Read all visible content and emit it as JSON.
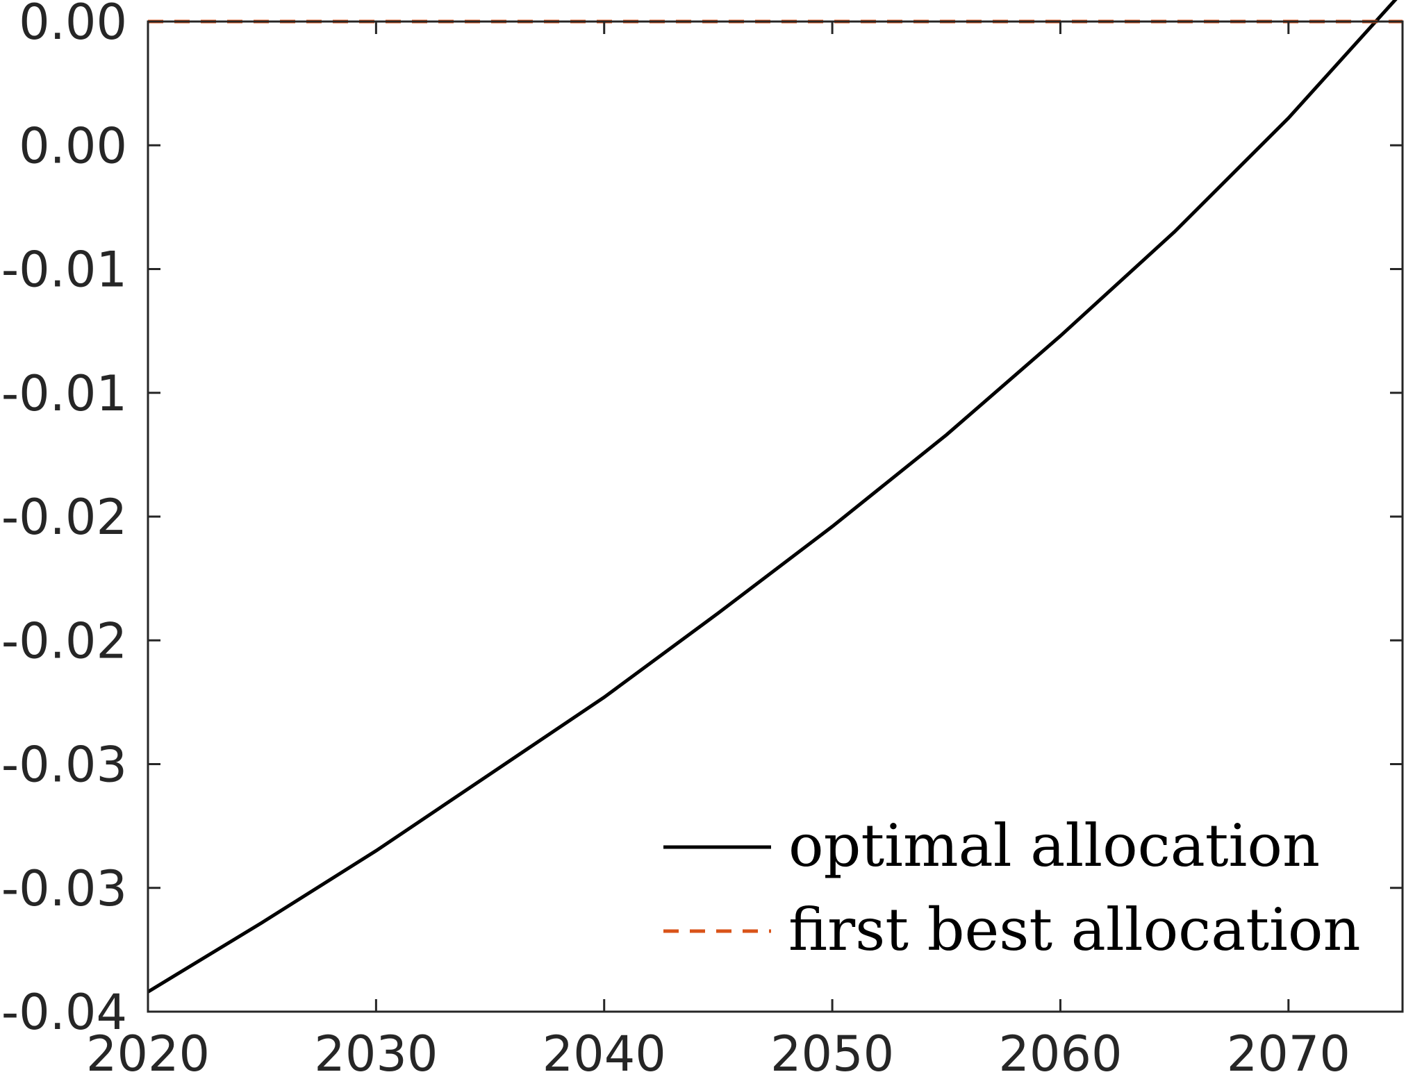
{
  "chart_data": {
    "type": "line",
    "title": "",
    "xlabel": "",
    "ylabel": "",
    "xlim": [
      2020,
      2075
    ],
    "ylim": [
      -0.04,
      0.0
    ],
    "x_ticks": [
      2020,
      2030,
      2040,
      2050,
      2060,
      2070
    ],
    "x_tick_labels": [
      "2020",
      "2030",
      "2040",
      "2050",
      "2060",
      "2070"
    ],
    "y_ticks": [
      -0.04,
      -0.035,
      -0.03,
      -0.025,
      -0.02,
      -0.015,
      -0.01,
      -0.005,
      0.0
    ],
    "y_tick_labels": [
      "-0.04",
      "-0.03",
      "-0.03",
      "-0.02",
      "-0.02",
      "-0.01",
      "-0.01",
      "0.00",
      "0.00"
    ],
    "grid": false,
    "legend_position": "bottom-right",
    "series": [
      {
        "name": "optimal allocation",
        "color": "#000000",
        "style": "solid",
        "x": [
          2020,
          2025,
          2030,
          2035,
          2040,
          2045,
          2050,
          2055,
          2060,
          2065,
          2070,
          2075
        ],
        "y": [
          -0.0392,
          -0.0364,
          -0.0335,
          -0.0304,
          -0.0273,
          -0.0239,
          -0.0204,
          -0.0167,
          -0.0127,
          -0.0085,
          -0.0039,
          0.0012
        ]
      },
      {
        "name": "first best allocation",
        "color": "#D95319",
        "style": "dashed",
        "x": [
          2020,
          2075
        ],
        "y": [
          0.0,
          0.0
        ]
      }
    ]
  }
}
